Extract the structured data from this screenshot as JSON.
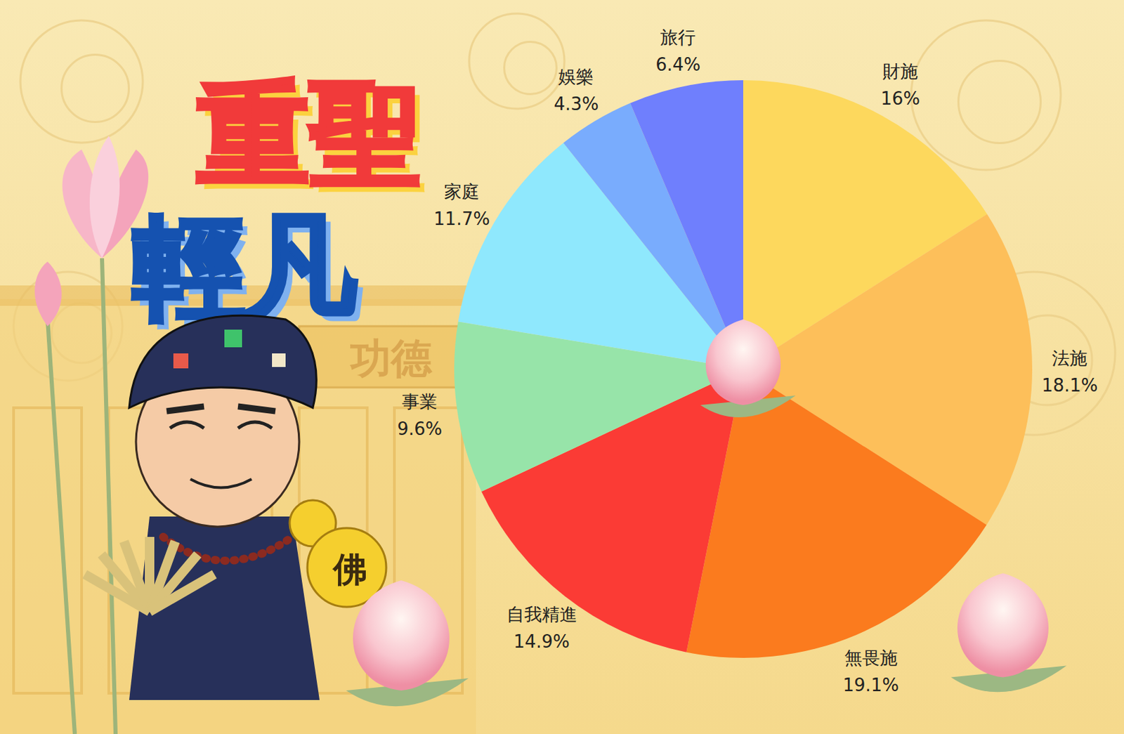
{
  "chart_data": {
    "type": "pie",
    "title": "重聖輕凡",
    "categories": [
      "財施",
      "法施",
      "無畏施",
      "自我精進",
      "事業",
      "家庭",
      "娛樂",
      "旅行"
    ],
    "values": [
      16,
      18.1,
      19.1,
      14.9,
      9.6,
      11.7,
      4.3,
      6.4
    ],
    "value_labels": [
      "16%",
      "18.1%",
      "19.1%",
      "14.9%",
      "9.6%",
      "11.7%",
      "4.3%",
      "6.4%"
    ],
    "colors": [
      "#fdd85d",
      "#fdbf5a",
      "#fb7b1e",
      "#fb3b35",
      "#97e4a9",
      "#8fe8fd",
      "#79acfd",
      "#6f7ffd"
    ],
    "data_labels": true,
    "annotations": [
      "功德",
      "佛"
    ]
  }
}
